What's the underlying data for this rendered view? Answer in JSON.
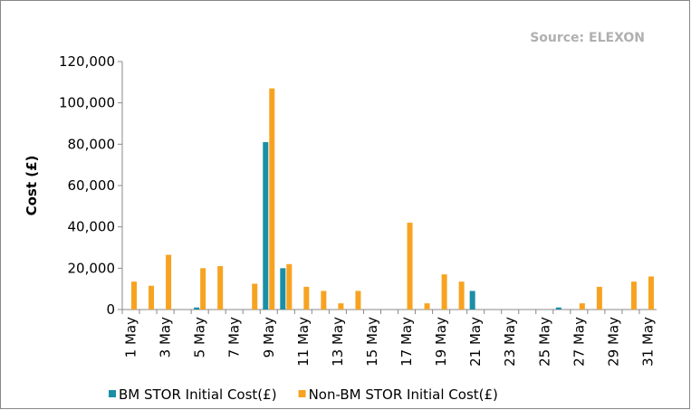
{
  "chart_data": {
    "type": "bar",
    "source": "Source: ELEXON",
    "y_label": "Cost (£)",
    "categories": [
      "1 May",
      null,
      "3 May",
      null,
      "5 May",
      null,
      "7 May",
      null,
      "9 May",
      null,
      "11 May",
      null,
      "13 May",
      null,
      "15 May",
      null,
      "17 May",
      null,
      "19 May",
      null,
      "21 May",
      null,
      "23 May",
      null,
      "25 May",
      null,
      "27 May",
      null,
      "29 May",
      null,
      "31 May"
    ],
    "series": [
      {
        "name": "BM STOR Initial Cost(£)",
        "color": "#1b8fa6",
        "values": [
          0,
          0,
          0,
          0,
          1000,
          0,
          0,
          0,
          81000,
          20000,
          0,
          0,
          0,
          0,
          0,
          0,
          0,
          0,
          0,
          0,
          9000,
          0,
          0,
          0,
          0,
          1000,
          0,
          0,
          0,
          0,
          0
        ]
      },
      {
        "name": "Non-BM STOR Initial Cost(£)",
        "color": "#f7a321",
        "values": [
          13500,
          11500,
          26500,
          0,
          20000,
          21000,
          0,
          12500,
          107000,
          22000,
          11000,
          9000,
          3000,
          9000,
          0,
          0,
          42000,
          3000,
          17000,
          13500,
          0,
          0,
          0,
          0,
          0,
          0,
          3000,
          11000,
          0,
          13500,
          16000
        ]
      }
    ],
    "ylim": [
      0,
      120000
    ],
    "yticks": [
      0,
      {
        "value": 20000,
        "label": "20,000"
      },
      {
        "value": 40000,
        "label": "40,000"
      },
      {
        "value": 60000,
        "label": "60,000"
      },
      {
        "value": 80000,
        "label": "80,000"
      },
      {
        "value": 100000,
        "label": "100,000"
      },
      {
        "value": 120000,
        "label": "120,000"
      }
    ]
  }
}
